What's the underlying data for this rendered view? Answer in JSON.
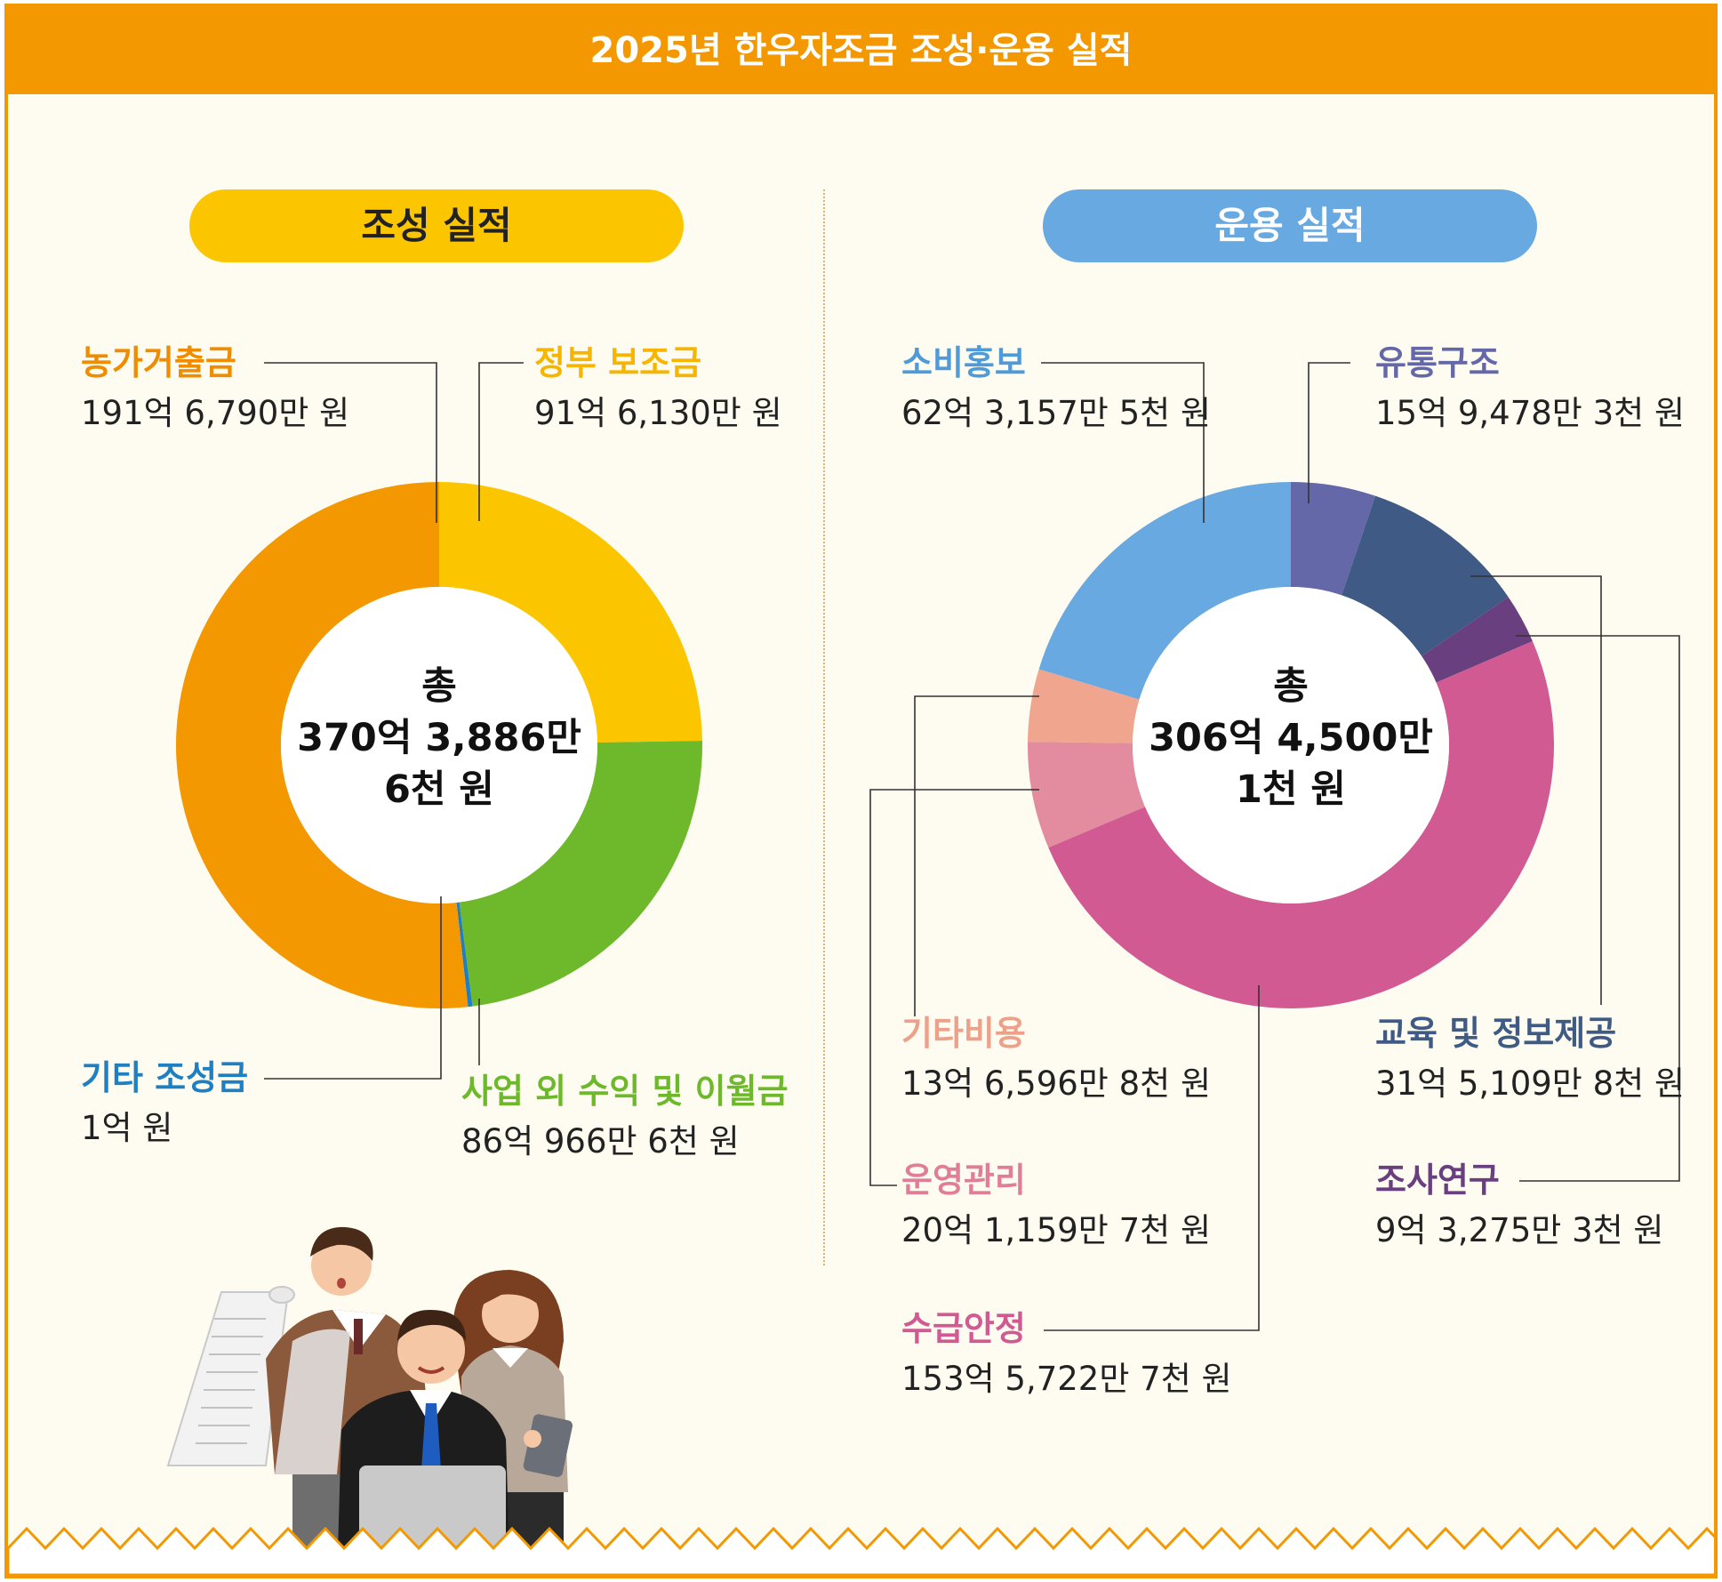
{
  "title": "2025년 한우자조금 조성·운용 실적",
  "chart_data": [
    {
      "type": "pie",
      "title": "조성 실적",
      "center_label": [
        "총",
        "370억 3,886만",
        "6천 원"
      ],
      "total_won": 37038866000,
      "slices": [
        {
          "name": "정부 보조금",
          "amount": "91억 6,130만 원",
          "value": 9161300000,
          "color": "#fbc600"
        },
        {
          "name": "사업 외 수익 및 이월금",
          "amount": "86억 966만 6천 원",
          "value": 8609666000,
          "color": "#6eb92b"
        },
        {
          "name": "기타 조성금",
          "amount": "1억 원",
          "value": 100000000,
          "color": "#1e7fc3"
        },
        {
          "name": "농가거출금",
          "amount": "191억 6,790만 원",
          "value": 19167900000,
          "color": "#f39800"
        }
      ]
    },
    {
      "type": "pie",
      "title": "운용 실적",
      "center_label": [
        "총",
        "306억 4,500만",
        "1천 원"
      ],
      "total_won": 30645001000,
      "slices": [
        {
          "name": "유통구조",
          "amount": "15억 9,478만 3천 원",
          "value": 1594783000,
          "color": "#6468a8"
        },
        {
          "name": "교육 및 정보제공",
          "amount": "31억 5,109만 8천 원",
          "value": 3151098000,
          "color": "#3e5a85"
        },
        {
          "name": "조사연구",
          "amount": "9억 3,275만 3천 원",
          "value": 932753000,
          "color": "#6a3f80"
        },
        {
          "name": "수급안정",
          "amount": "153억 5,722만 7천 원",
          "value": 15357227000,
          "color": "#d05a91"
        },
        {
          "name": "운영관리",
          "amount": "20억 1,159만 7천 원",
          "value": 2011597000,
          "color": "#e38b9f"
        },
        {
          "name": "기타비용",
          "amount": "13억 6,596만 8천 원",
          "value": 1365968000,
          "color": "#efa58e"
        },
        {
          "name": "소비홍보",
          "amount": "62억 3,157만 5천 원",
          "value": 6231575000,
          "color": "#67a9e0"
        }
      ]
    }
  ],
  "label_colors": {
    "농가거출금": "#f08c00",
    "정부 보조금": "#f7b500",
    "기타 조성금": "#1e7fc3",
    "사업 외 수익 및 이월금": "#6eb92b",
    "소비홍보": "#4f9ad8",
    "유통구조": "#6468a8",
    "기타비용": "#eda08a",
    "교육 및 정보제공": "#3e5a85",
    "운영관리": "#e07e98",
    "조사연구": "#6a3f80",
    "수급안정": "#d05a91"
  }
}
